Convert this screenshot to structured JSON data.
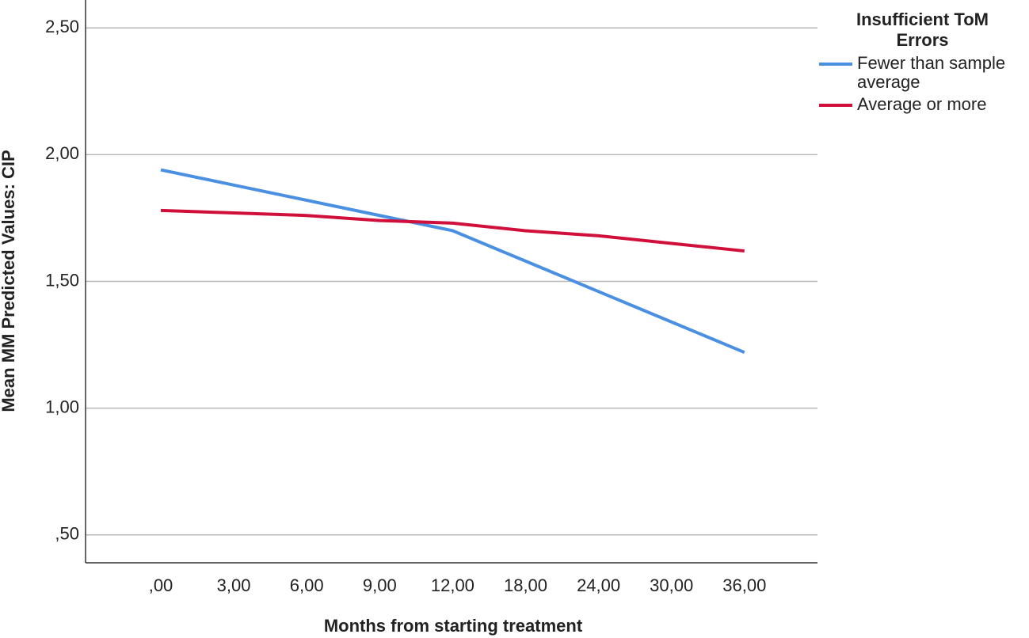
{
  "chart_data": {
    "type": "line",
    "x_label": "Months from starting treatment",
    "y_label": "Mean MM Predicted Values: CIP",
    "legend_title": "Insufficient ToM Errors",
    "categories": [
      ",00",
      "3,00",
      "6,00",
      "9,00",
      "12,00",
      "18,00",
      "24,00",
      "30,00",
      "36,00"
    ],
    "series": [
      {
        "name": "Fewer than sample average",
        "color": "#4a90e2",
        "values": [
          1.94,
          1.88,
          1.82,
          1.76,
          1.7,
          1.58,
          1.46,
          1.34,
          1.22
        ]
      },
      {
        "name": "Average or more",
        "color": "#d0103a",
        "values": [
          1.78,
          1.77,
          1.76,
          1.74,
          1.73,
          1.7,
          1.68,
          1.65,
          1.62
        ]
      }
    ],
    "ylim": [
      0.39,
      2.61
    ],
    "yticks": [
      {
        "value": 0.5,
        "label": ",50"
      },
      {
        "value": 1,
        "label": "1,00"
      },
      {
        "value": 1.5,
        "label": "1,50"
      },
      {
        "value": 2,
        "label": "2,00"
      },
      {
        "value": 2.5,
        "label": "2,50"
      }
    ],
    "grid": true
  }
}
